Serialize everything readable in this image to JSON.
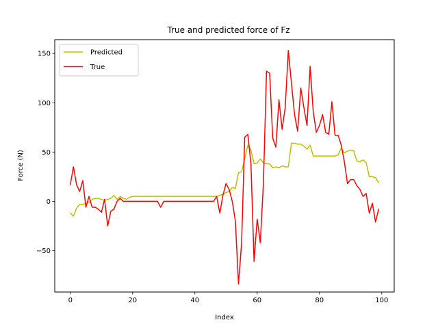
{
  "chart_data": {
    "type": "line",
    "title": "True and predicted force of Fz",
    "xlabel": "Index",
    "ylabel": "Force (N)",
    "xlim": [
      -5,
      104
    ],
    "ylim": [
      -92,
      164
    ],
    "xticks": [
      0,
      20,
      40,
      60,
      80,
      100
    ],
    "yticks": [
      -50,
      0,
      50,
      100,
      150
    ],
    "ytick_labels": [
      "−50",
      "0",
      "50",
      "100",
      "150"
    ],
    "grid": false,
    "legend_position": "top-left",
    "x": [
      0,
      1,
      2,
      3,
      4,
      5,
      6,
      7,
      8,
      9,
      10,
      11,
      12,
      13,
      14,
      15,
      16,
      17,
      18,
      19,
      20,
      21,
      22,
      23,
      24,
      25,
      26,
      27,
      28,
      29,
      30,
      31,
      32,
      33,
      34,
      35,
      36,
      37,
      38,
      39,
      40,
      41,
      42,
      43,
      44,
      45,
      46,
      47,
      48,
      49,
      50,
      51,
      52,
      53,
      54,
      55,
      56,
      57,
      58,
      59,
      60,
      61,
      62,
      63,
      64,
      65,
      66,
      67,
      68,
      69,
      70,
      71,
      72,
      73,
      74,
      75,
      76,
      77,
      78,
      79,
      80,
      81,
      82,
      83,
      84,
      85,
      86,
      87,
      88,
      89,
      90,
      91,
      92,
      93,
      94,
      95,
      96,
      97,
      98,
      99
    ],
    "series": [
      {
        "name": "Predicted",
        "color": "#bfbf00",
        "values": [
          -12,
          -15,
          -7,
          -3,
          -3,
          -2,
          -1,
          2,
          3,
          3,
          2,
          1,
          2,
          3,
          6,
          2,
          5,
          3,
          2,
          4,
          5,
          5,
          5,
          5,
          5,
          5,
          5,
          5,
          5,
          5,
          5,
          5,
          5,
          5,
          5,
          5,
          5,
          5,
          5,
          5,
          5,
          5,
          5,
          5,
          5,
          5,
          5,
          5,
          6,
          7,
          9,
          10,
          14,
          13,
          29,
          30,
          43,
          57,
          52,
          38,
          39,
          43,
          39,
          38,
          38,
          34,
          35,
          34,
          36,
          35,
          35,
          59,
          59,
          58,
          58,
          56,
          53,
          57,
          46,
          46,
          46,
          46,
          46,
          46,
          46,
          46,
          47,
          54,
          49,
          51,
          52,
          51,
          41,
          40,
          42,
          39,
          25,
          25,
          24,
          19
        ]
      },
      {
        "name": "True",
        "color": "#ff0000",
        "values": [
          17,
          35,
          17,
          10,
          21,
          -6,
          5,
          -6,
          -6,
          -8,
          -11,
          2,
          -25,
          -10,
          -8,
          0,
          3,
          0,
          0,
          0,
          0,
          0,
          0,
          0,
          0,
          0,
          0,
          0,
          0,
          -6,
          0,
          0,
          0,
          0,
          0,
          0,
          0,
          0,
          0,
          0,
          0,
          0,
          0,
          0,
          0,
          0,
          0,
          5,
          -12,
          6,
          18,
          12,
          0,
          -20,
          -84,
          -42,
          65,
          68,
          38,
          -61,
          -18,
          -42,
          18,
          132,
          130,
          64,
          55,
          103,
          73,
          95,
          153,
          120,
          88,
          71,
          115,
          95,
          77,
          137,
          91,
          70,
          77,
          88,
          70,
          68,
          101,
          67,
          67,
          57,
          40,
          18,
          22,
          22,
          16,
          12,
          5,
          8,
          -12,
          -2,
          -21,
          -8
        ]
      }
    ]
  }
}
